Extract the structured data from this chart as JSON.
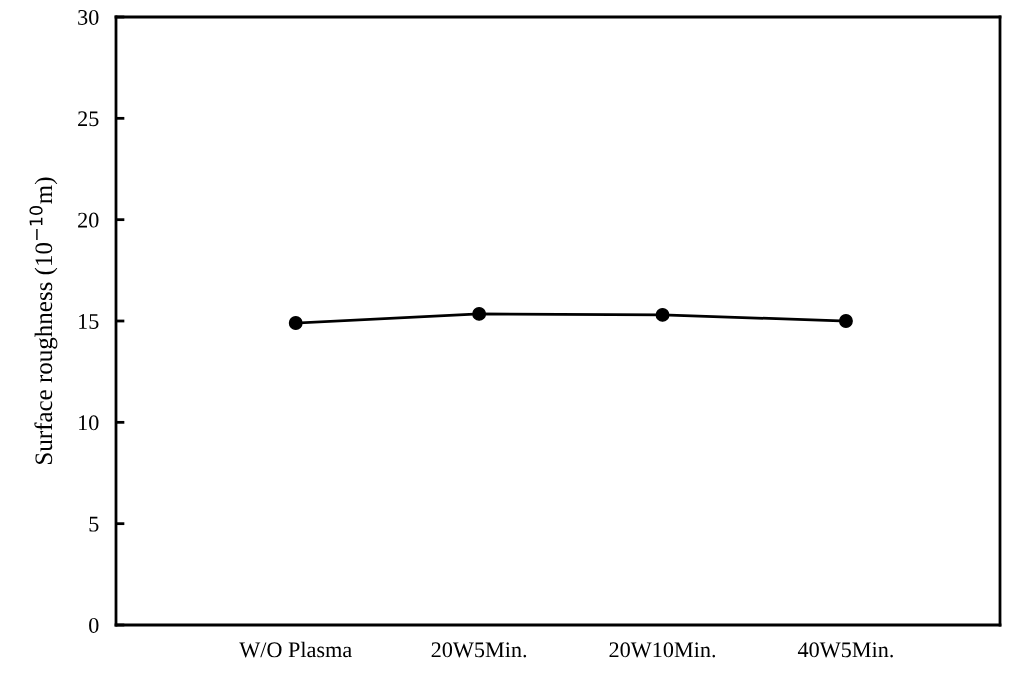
{
  "chart_data": {
    "type": "line",
    "ylabel": "Surface roughness (10$^{−10}$m)",
    "categories": [
      "W/O Plasma",
      "20W5Min.",
      "20W10Min.",
      "40W5Min."
    ],
    "series": [
      {
        "color": "#000000",
        "values": [
          14.9,
          15.35,
          15.3,
          15.0
        ]
      }
    ],
    "ylim": [
      0,
      30
    ],
    "yticks": [
      0,
      5,
      10,
      15,
      20,
      25,
      30
    ],
    "marker": "circle",
    "line_style": "solid",
    "grid": false,
    "legend": false
  }
}
